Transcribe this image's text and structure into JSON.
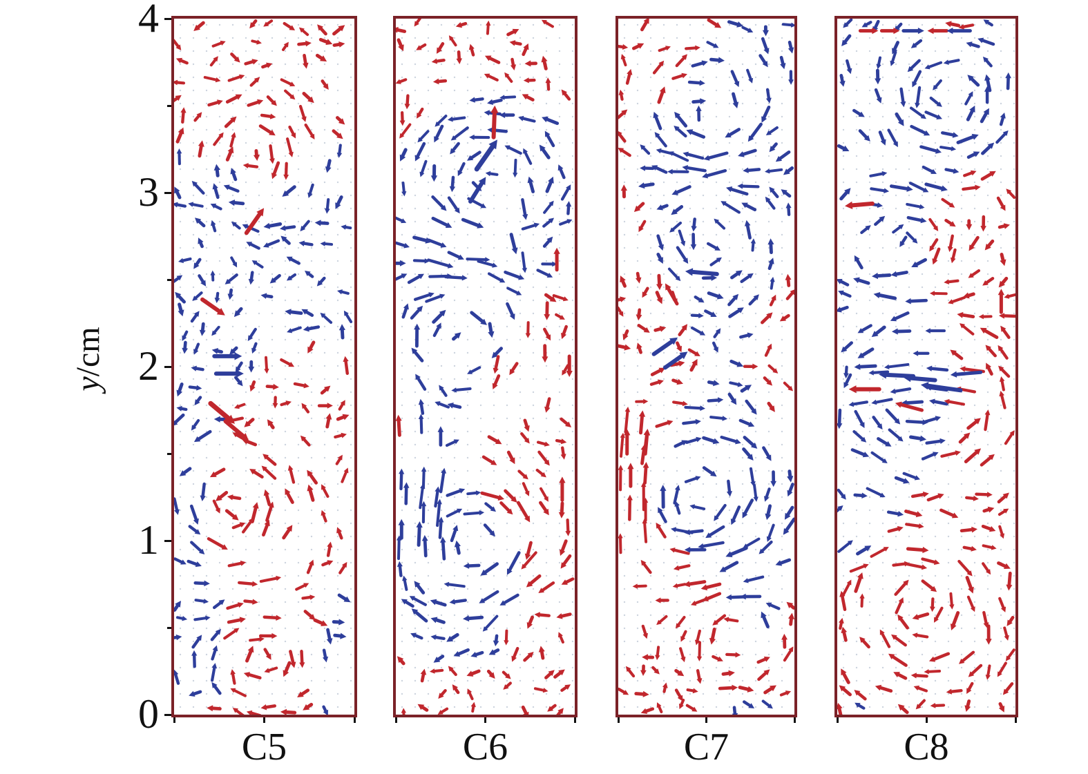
{
  "figure": {
    "y_axis": {
      "label_var": "y",
      "label_unit": "/cm",
      "ticks": [
        "4",
        "3",
        "2",
        "1",
        "0"
      ],
      "range_cm": [
        0,
        4
      ]
    },
    "colors": {
      "frame": "#7b2228",
      "red": "#c1272d",
      "blue": "#2e3e9b",
      "grid_dot": "#ccd3de",
      "tick": "#111111",
      "text": "#111111"
    }
  },
  "chart_data": {
    "type": "quiver",
    "title": "",
    "ylabel": "y/cm",
    "ylim": [
      0,
      4
    ],
    "categories": [
      "C5",
      "C6",
      "C7",
      "C8"
    ],
    "legend": null,
    "grid": "fine dotted measurement grid inside each panel",
    "arrow_color_meaning": "instantaneous velocity vectors drawn in red and blue",
    "panels": [
      {
        "label": "C5",
        "seed": 11,
        "vortices": [
          [
            0.45,
            3.2,
            1,
            20,
            80
          ],
          [
            0.35,
            1.2,
            -1,
            22,
            95
          ],
          [
            0.5,
            0.35,
            1,
            18,
            70
          ],
          [
            0.75,
            2.1,
            -1,
            14,
            75
          ]
        ],
        "streams": [],
        "highlights": [
          [
            0.45,
            2.84,
            -55,
            44,
            6,
            "red"
          ],
          [
            0.22,
            2.34,
            35,
            40,
            6,
            "red"
          ],
          [
            0.3,
            2.06,
            0,
            40,
            6,
            "blue"
          ],
          [
            0.31,
            1.96,
            0,
            40,
            6,
            "blue"
          ],
          [
            0.27,
            1.73,
            40,
            46,
            7,
            "red"
          ],
          [
            0.35,
            1.63,
            40,
            44,
            6,
            "red"
          ]
        ]
      },
      {
        "label": "C6",
        "seed": 47,
        "vortices": [
          [
            0.5,
            3.05,
            -1,
            24,
            95
          ],
          [
            0.33,
            2.2,
            1,
            22,
            100
          ],
          [
            0.45,
            1.0,
            1,
            24,
            110
          ],
          [
            0.75,
            0.55,
            -1,
            14,
            70
          ]
        ],
        "streams": [
          [
            0.0,
            0.28,
            0.85,
            1.75,
            -90,
            null
          ],
          [
            0.58,
            0.72,
            2.55,
            3.2,
            90,
            "blue"
          ]
        ],
        "highlights": [
          [
            0.55,
            3.41,
            -88,
            46,
            6,
            "red"
          ],
          [
            0.51,
            3.22,
            -55,
            52,
            7,
            "blue"
          ],
          [
            0.46,
            3.02,
            -58,
            42,
            6,
            "blue"
          ],
          [
            0.9,
            2.62,
            -90,
            32,
            5,
            "red"
          ],
          [
            0.93,
            1.3,
            -90,
            34,
            5,
            "red"
          ],
          [
            0.97,
            2.0,
            90,
            30,
            5,
            "red"
          ]
        ]
      },
      {
        "label": "C7",
        "seed": 83,
        "vortices": [
          [
            0.5,
            3.45,
            1,
            22,
            90
          ],
          [
            0.55,
            2.8,
            -1,
            18,
            85
          ],
          [
            0.45,
            1.25,
            1,
            24,
            105
          ],
          [
            0.65,
            0.5,
            -1,
            18,
            80
          ]
        ],
        "streams": [
          [
            0.0,
            0.18,
            0.9,
            1.75,
            -90,
            "red"
          ]
        ],
        "highlights": [
          [
            0.47,
            2.54,
            185,
            46,
            6,
            "blue"
          ],
          [
            0.27,
            2.12,
            -35,
            42,
            6,
            "blue"
          ],
          [
            0.33,
            2.04,
            -35,
            40,
            6,
            "blue"
          ],
          [
            0.05,
            1.57,
            -90,
            36,
            5,
            "red"
          ],
          [
            0.16,
            1.57,
            -85,
            36,
            5,
            "red"
          ],
          [
            0.07,
            1.38,
            -90,
            34,
            5,
            "red"
          ],
          [
            0.3,
            2.42,
            -120,
            34,
            5,
            "red"
          ]
        ]
      },
      {
        "label": "C8",
        "seed": 29,
        "vortices": [
          [
            0.6,
            3.55,
            -1,
            22,
            90
          ],
          [
            0.35,
            2.7,
            1,
            16,
            90
          ],
          [
            0.5,
            1.85,
            -1,
            22,
            110
          ],
          [
            0.45,
            0.6,
            1,
            24,
            95
          ]
        ],
        "streams": [
          [
            0.1,
            0.85,
            1.78,
            2.02,
            182,
            null
          ]
        ],
        "highlights": [
          [
            0.33,
            1.95,
            183,
            50,
            6,
            "blue"
          ],
          [
            0.46,
            1.93,
            185,
            46,
            6,
            "blue"
          ],
          [
            0.58,
            1.88,
            188,
            58,
            6,
            "blue"
          ],
          [
            0.72,
            1.96,
            175,
            44,
            5,
            "blue"
          ],
          [
            0.15,
            1.87,
            180,
            44,
            6,
            "red"
          ],
          [
            0.4,
            1.77,
            195,
            40,
            5,
            "red"
          ],
          [
            0.92,
            2.38,
            -90,
            34,
            5,
            "red"
          ],
          [
            0.12,
            2.93,
            175,
            40,
            6,
            "red"
          ],
          [
            0.18,
            3.93,
            0,
            26,
            5,
            "red"
          ],
          [
            0.3,
            3.93,
            0,
            26,
            5,
            "red"
          ],
          [
            0.43,
            3.93,
            0,
            30,
            5,
            "blue"
          ],
          [
            0.56,
            3.93,
            180,
            28,
            5,
            "red"
          ],
          [
            0.68,
            3.93,
            180,
            34,
            5,
            "blue"
          ]
        ]
      }
    ]
  }
}
